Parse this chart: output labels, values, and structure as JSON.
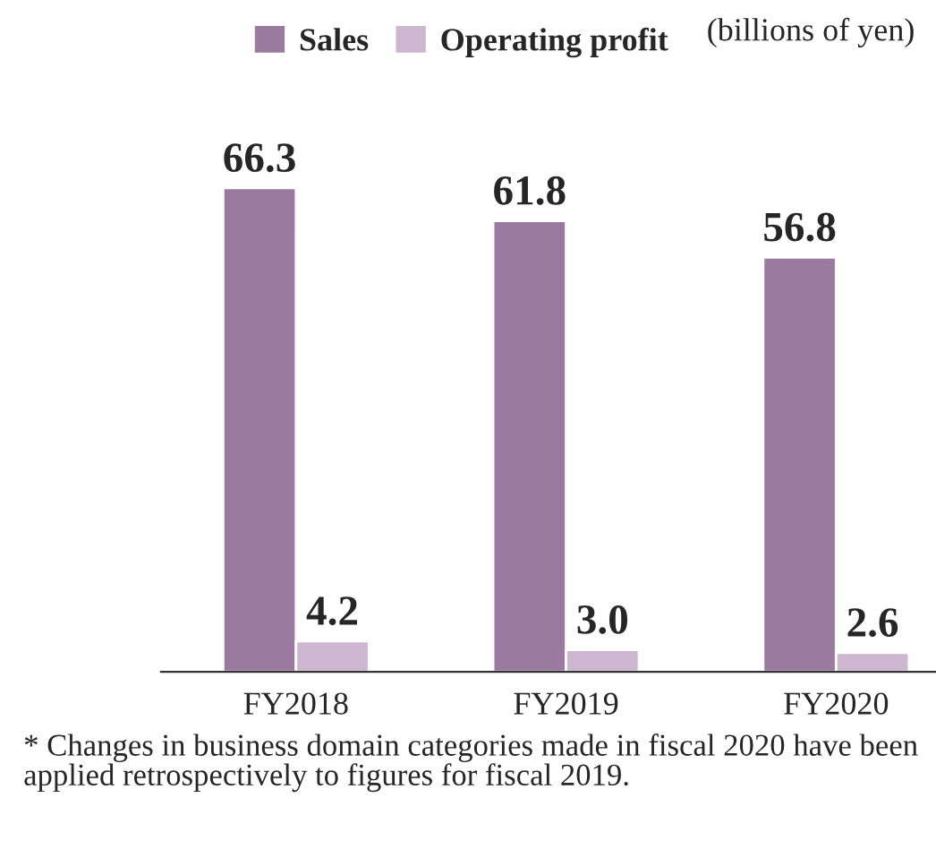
{
  "chart_data": {
    "type": "bar",
    "categories": [
      "FY2018",
      "FY2019",
      "FY2020"
    ],
    "series": [
      {
        "name": "Sales",
        "color": "#9a7a9e",
        "values": [
          66.3,
          61.8,
          56.8
        ],
        "value_labels": [
          "66.3",
          "61.8",
          "56.8"
        ]
      },
      {
        "name": "Operating profit",
        "color": "#cdb6cf",
        "values": [
          4.2,
          3.0,
          2.6
        ],
        "value_labels": [
          "4.2",
          "3.0",
          "2.6"
        ]
      }
    ],
    "legend": "top",
    "grid": false,
    "annotations": [
      "(billions of yen)",
      "* Changes in business domain categories made in fiscal 2020 have been applied retrospectively to figures for fiscal 2019."
    ]
  }
}
